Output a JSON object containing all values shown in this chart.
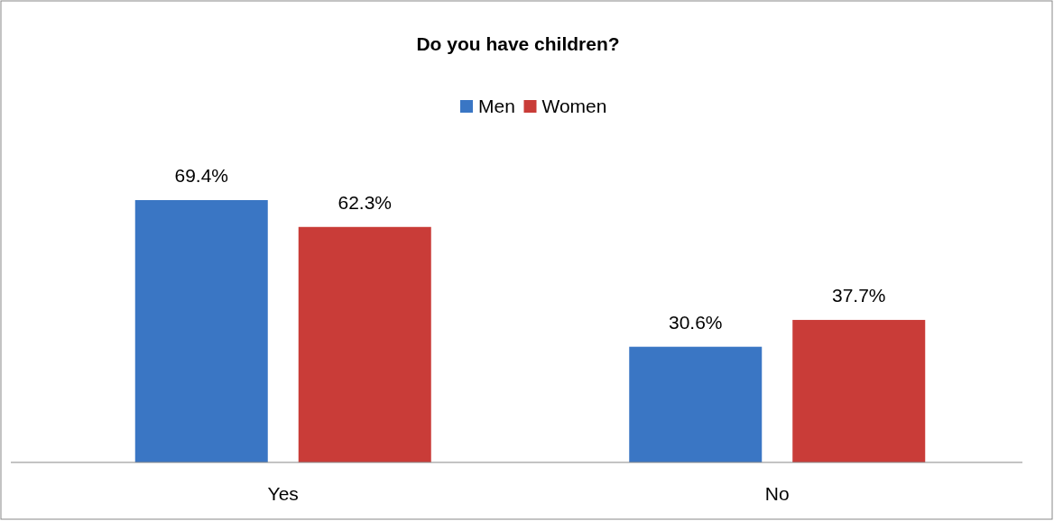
{
  "chart_data": {
    "type": "bar",
    "title": "Do you have children?",
    "categories": [
      "Yes",
      "No"
    ],
    "series": [
      {
        "name": "Men",
        "color": "#3a76c4",
        "values": [
          69.4,
          30.6
        ],
        "value_labels": [
          "69.4%",
          "30.6%"
        ]
      },
      {
        "name": "Women",
        "color": "#c93c38",
        "values": [
          62.3,
          37.7
        ],
        "value_labels": [
          "62.3%",
          "37.7%"
        ]
      }
    ],
    "legend": "top"
  }
}
